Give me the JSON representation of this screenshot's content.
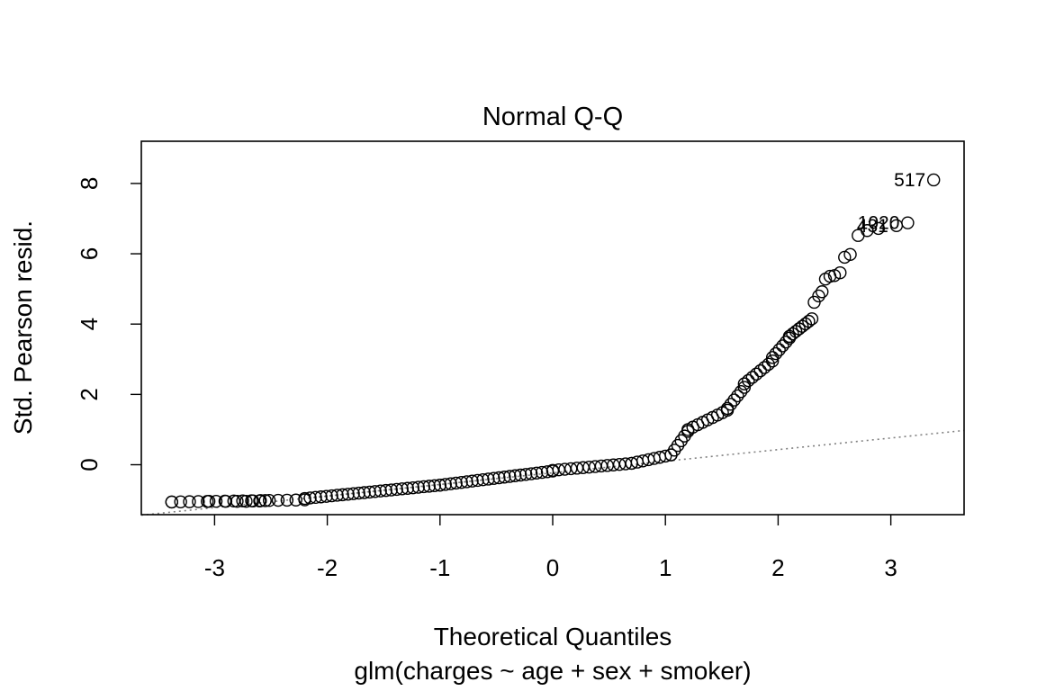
{
  "chart_data": {
    "type": "scatter",
    "title": "Normal Q-Q",
    "xlabel": "Theoretical Quantiles",
    "subtitle": "glm(charges ~ age + sex + smoker)",
    "ylabel": "Std. Pearson resid.",
    "xlim": [
      -3.65,
      3.65
    ],
    "ylim": [
      -1.42,
      9.2
    ],
    "xticks": [
      -3,
      -2,
      -1,
      0,
      1,
      2,
      3
    ],
    "yticks": [
      0,
      2,
      4,
      6,
      8
    ],
    "reference_line": {
      "slope": 0.33,
      "intercept": -0.23,
      "style": "dotted",
      "color": "#808080"
    },
    "label_color": "#000000",
    "labeled_points": [
      {
        "label": "517",
        "x": 3.38,
        "y": 8.1
      },
      {
        "label": "1020",
        "x": 3.15,
        "y": 6.88
      },
      {
        "label": "431",
        "x": 3.05,
        "y": 6.8
      }
    ],
    "segments": [
      {
        "x0": -3.38,
        "x1": -2.2,
        "y0": -1.06,
        "y1": -1.0,
        "n": 16
      },
      {
        "x0": -2.2,
        "x1": -1.0,
        "y0": -0.96,
        "y1": -0.58,
        "n": 26
      },
      {
        "x0": -1.0,
        "x1": 0.0,
        "y0": -0.58,
        "y1": -0.18,
        "n": 22
      },
      {
        "x0": 0.0,
        "x1": 0.7,
        "y0": -0.16,
        "y1": 0.04,
        "n": 14
      },
      {
        "x0": 0.7,
        "x1": 1.05,
        "y0": 0.04,
        "y1": 0.28,
        "n": 8
      },
      {
        "x0": 1.05,
        "x1": 1.2,
        "y0": 0.28,
        "y1": 0.95,
        "n": 6
      },
      {
        "x0": 1.2,
        "x1": 1.55,
        "y0": 1.0,
        "y1": 1.55,
        "n": 9
      },
      {
        "x0": 1.55,
        "x1": 1.7,
        "y0": 1.6,
        "y1": 2.2,
        "n": 6
      },
      {
        "x0": 1.7,
        "x1": 1.95,
        "y0": 2.3,
        "y1": 2.95,
        "n": 8
      },
      {
        "x0": 1.95,
        "x1": 2.1,
        "y0": 3.05,
        "y1": 3.6,
        "n": 6
      },
      {
        "x0": 2.1,
        "x1": 2.3,
        "y0": 3.65,
        "y1": 4.15,
        "n": 8
      }
    ],
    "points": [
      [
        -3.38,
        -1.06
      ],
      [
        -3.05,
        -1.04
      ],
      [
        -2.9,
        -1.04
      ],
      [
        -2.8,
        -1.04
      ],
      [
        -2.72,
        -1.04
      ],
      [
        -2.66,
        -1.03
      ],
      [
        -2.6,
        -1.03
      ],
      [
        -2.55,
        -1.02
      ],
      [
        2.32,
        4.62
      ],
      [
        2.36,
        4.8
      ],
      [
        2.39,
        4.92
      ],
      [
        2.42,
        5.28
      ],
      [
        2.46,
        5.36
      ],
      [
        2.5,
        5.38
      ],
      [
        2.55,
        5.46
      ],
      [
        2.59,
        5.9
      ],
      [
        2.64,
        5.98
      ],
      [
        2.71,
        6.52
      ],
      [
        2.79,
        6.66
      ],
      [
        2.89,
        6.72
      ]
    ]
  }
}
